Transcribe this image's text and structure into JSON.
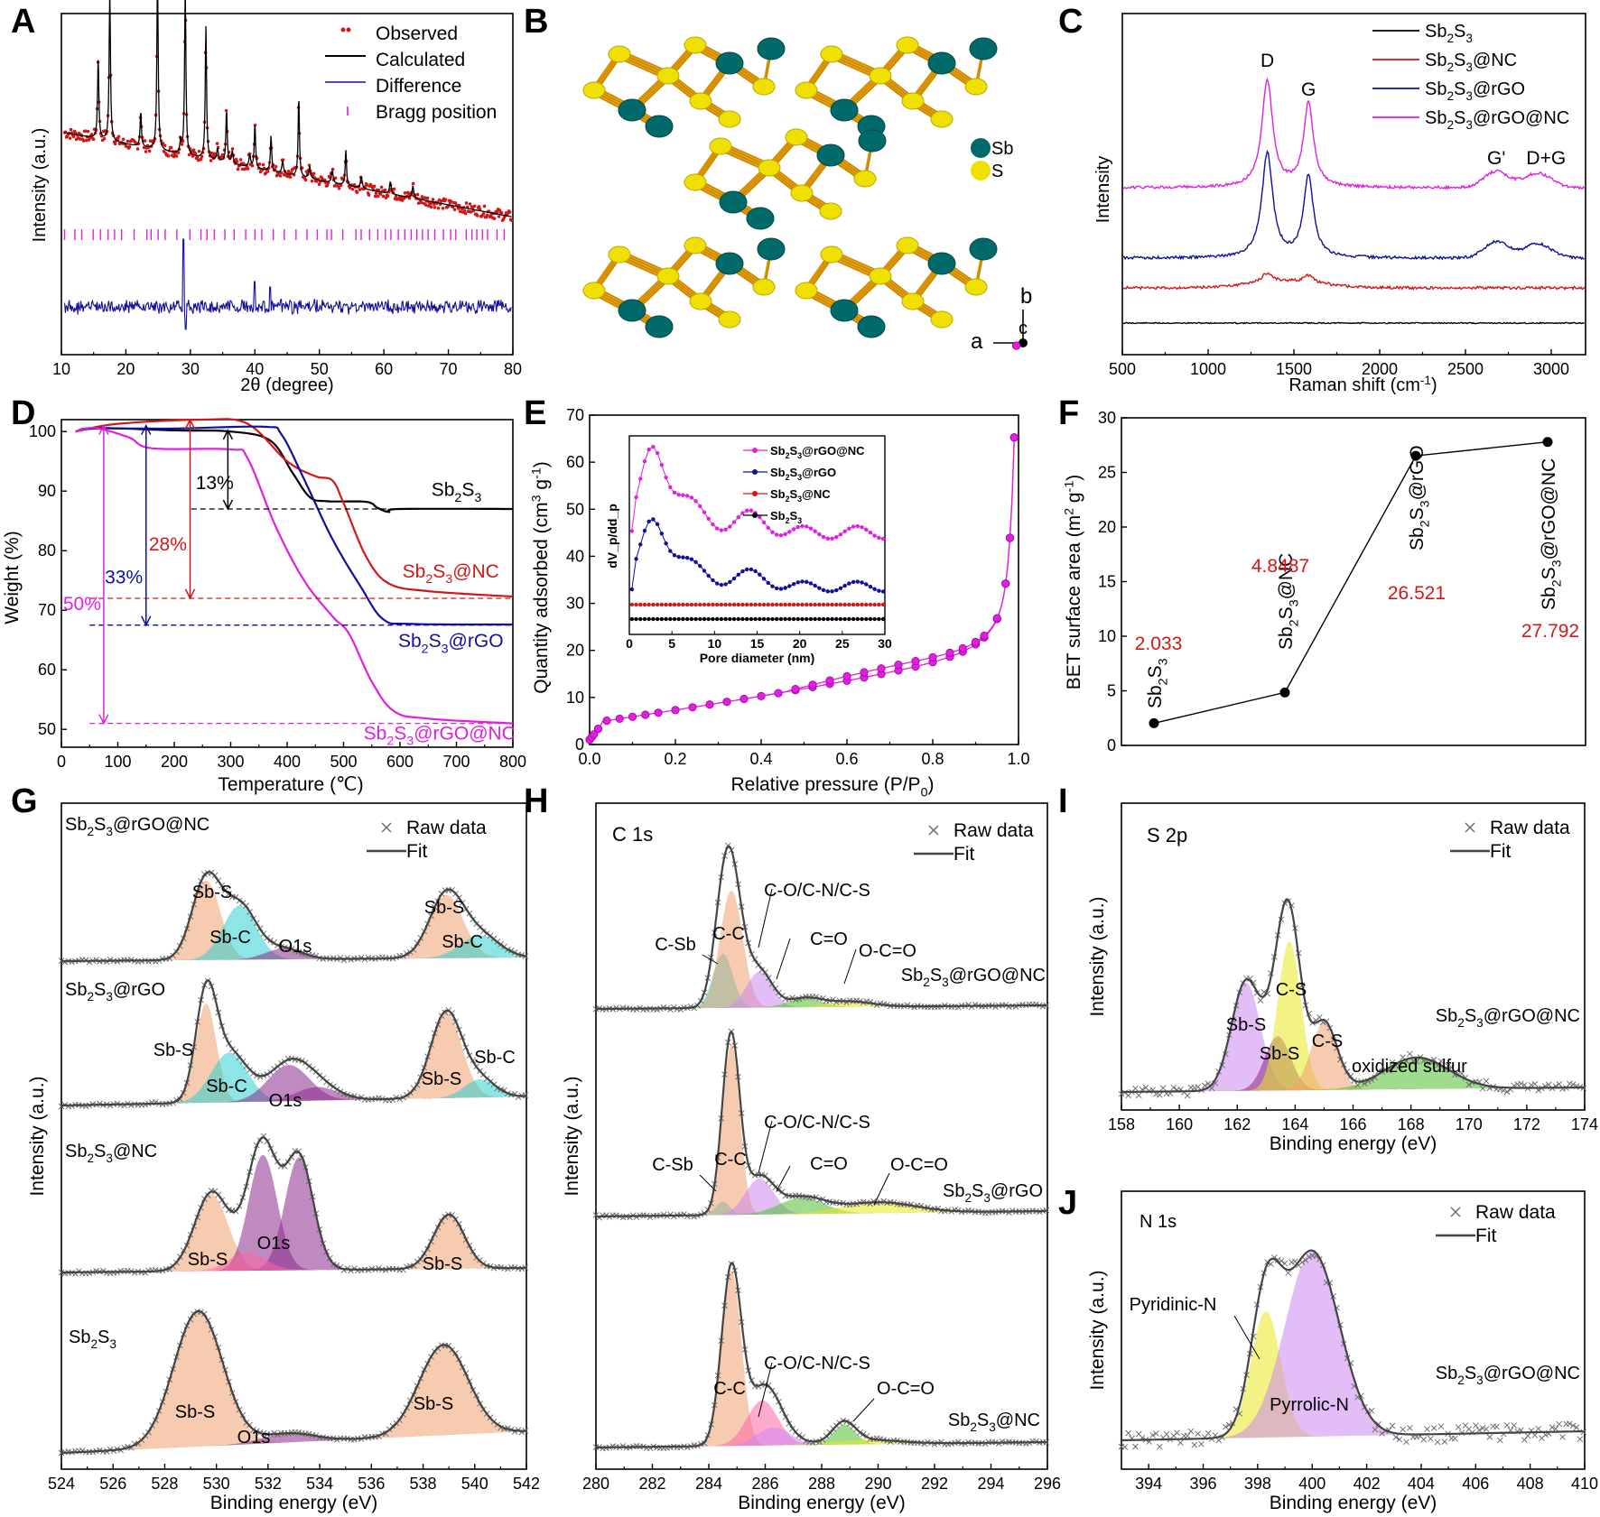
{
  "figure": {
    "panel_labels": [
      "A",
      "B",
      "C",
      "D",
      "E",
      "F",
      "G",
      "H",
      "I",
      "J"
    ]
  },
  "colors": {
    "red": "#d01818",
    "black": "#000000",
    "blue": "#10109a",
    "magenta": "#e020e0",
    "orange": "#e8a000",
    "teal": "#006a6a",
    "yellow": "#f0e000"
  },
  "chart_data": [
    {
      "id": "A",
      "type": "line",
      "xlabel": "2θ (degree)",
      "ylabel": "Intensity (a.u.)",
      "xlim": [
        10,
        80
      ],
      "xticks": [
        10,
        20,
        30,
        40,
        50,
        60,
        70,
        80
      ],
      "legend": [
        "Observed",
        "Calculated",
        "Difference",
        "Bragg position"
      ],
      "peaks_2theta": [
        15.7,
        17.5,
        22.3,
        24.9,
        29.2,
        32.4,
        35.6,
        40.0,
        42.5,
        46.8,
        54.1
      ]
    },
    {
      "id": "B",
      "type": "structure",
      "legend": [
        "Sb",
        "S"
      ],
      "axes": [
        "a",
        "b",
        "c"
      ]
    },
    {
      "id": "C",
      "type": "line",
      "xlabel": "Raman shift (cm⁻¹)",
      "ylabel": "Intensity",
      "xlim": [
        500,
        3200
      ],
      "xticks": [
        500,
        1000,
        1500,
        2000,
        2500,
        3000
      ],
      "peak_labels": [
        "D",
        "G",
        "G'",
        "D+G"
      ],
      "series": [
        {
          "name": "Sb2S3",
          "color": "#000000"
        },
        {
          "name": "Sb2S3@NC",
          "color": "#d01818"
        },
        {
          "name": "Sb2S3@rGO",
          "color": "#10109a"
        },
        {
          "name": "Sb2S3@rGO@NC",
          "color": "#e020e0"
        }
      ]
    },
    {
      "id": "D",
      "type": "line",
      "xlabel": "Temperature (℃)",
      "ylabel": "Weight (%)",
      "xlim": [
        0,
        800
      ],
      "ylim": [
        47,
        102
      ],
      "xticks": [
        0,
        100,
        200,
        300,
        400,
        500,
        600,
        700,
        800
      ],
      "yticks": [
        50,
        60,
        70,
        80,
        90,
        100
      ],
      "series": [
        {
          "name": "Sb2S3",
          "final_weight": 87,
          "loss_label": "13%",
          "color": "#000000"
        },
        {
          "name": "Sb2S3@NC",
          "final_weight": 72,
          "loss_label": "28%",
          "color": "#d01818"
        },
        {
          "name": "Sb2S3@rGO",
          "final_weight": 67.5,
          "loss_label": "33%",
          "color": "#10109a"
        },
        {
          "name": "Sb2S3@rGO@NC",
          "final_weight": 51,
          "loss_label": "50%",
          "color": "#e020e0"
        }
      ]
    },
    {
      "id": "E",
      "type": "line",
      "xlabel": "Relative pressure (P/P0)",
      "ylabel": "Quantity adsorbed (cm3 g-1)",
      "xlim": [
        0.0,
        1.0
      ],
      "ylim": [
        0,
        70
      ],
      "xticks": [
        0.0,
        0.2,
        0.4,
        0.6,
        0.8,
        1.0
      ],
      "yticks": [
        0,
        10,
        20,
        30,
        40,
        50,
        60,
        70
      ],
      "inset": {
        "xlabel": "Pore diameter (nm)",
        "ylabel": "dVp/ddp",
        "xticks": [
          0,
          5,
          10,
          15,
          20,
          25,
          30
        ],
        "legend": [
          "Sb2S3@rGO@NC",
          "Sb2S3@rGO",
          "Sb2S3@NC",
          "Sb2S3"
        ]
      }
    },
    {
      "id": "F",
      "type": "scatter",
      "xlabel": "",
      "ylabel": "BET surface area (m2 g-1)",
      "ylim": [
        0,
        30
      ],
      "yticks": [
        0,
        5,
        10,
        15,
        20,
        25,
        30
      ],
      "categories": [
        "Sb2S3",
        "Sb2S3@NC",
        "Sb2S3@rGO",
        "Sb2S3@rGO@NC"
      ],
      "values": [
        2.033,
        4.8487,
        26.521,
        27.792
      ],
      "value_labels": [
        "2.033",
        "4.8487",
        "26.521",
        "27.792"
      ]
    },
    {
      "id": "G",
      "type": "line",
      "xlabel": "Binding energy (eV)",
      "ylabel": "Intensity (a.u.)",
      "xlim": [
        524,
        542
      ],
      "xticks": [
        524,
        526,
        528,
        530,
        532,
        534,
        536,
        538,
        540,
        542
      ],
      "legend": [
        "Raw data",
        "Fit"
      ],
      "series": [
        "Sb2S3@rGO@NC",
        "Sb2S3@rGO",
        "Sb2S3@NC",
        "Sb2S3"
      ],
      "component_labels": [
        "Sb-S",
        "Sb-C",
        "O1s"
      ]
    },
    {
      "id": "H",
      "type": "line",
      "title": "C 1s",
      "xlabel": "Binding energy (eV)",
      "ylabel": "Intensity (a.u.)",
      "xlim": [
        280,
        296
      ],
      "xticks": [
        280,
        282,
        284,
        286,
        288,
        290,
        292,
        294,
        296
      ],
      "legend": [
        "Raw data",
        "Fit"
      ],
      "series": [
        "Sb2S3@rGO@NC",
        "Sb2S3@rGO",
        "Sb2S3@NC"
      ],
      "component_labels": [
        "C-Sb",
        "C-C",
        "C-O/C-N/C-S",
        "C=O",
        "O-C=O"
      ]
    },
    {
      "id": "I",
      "type": "line",
      "title": "S 2p",
      "xlabel": "Binding energy (eV)",
      "ylabel": "Intensity (a.u.)",
      "xlim": [
        158,
        174
      ],
      "xticks": [
        158,
        160,
        162,
        164,
        166,
        168,
        170,
        172,
        174
      ],
      "legend": [
        "Raw data",
        "Fit"
      ],
      "sample": "Sb2S3@rGO@NC",
      "component_labels": [
        "Sb-S",
        "C-S",
        "oxidized sulfur"
      ]
    },
    {
      "id": "J",
      "type": "line",
      "title": "N 1s",
      "xlabel": "Binding energy (eV)",
      "ylabel": "Intensity (a.u.)",
      "xlim": [
        393,
        410
      ],
      "xticks": [
        394,
        396,
        398,
        400,
        402,
        404,
        406,
        408,
        410
      ],
      "legend": [
        "Raw data",
        "Fit"
      ],
      "sample": "Sb2S3@rGO@NC",
      "component_labels": [
        "Pyridinic-N",
        "Pyrrolic-N"
      ]
    }
  ]
}
